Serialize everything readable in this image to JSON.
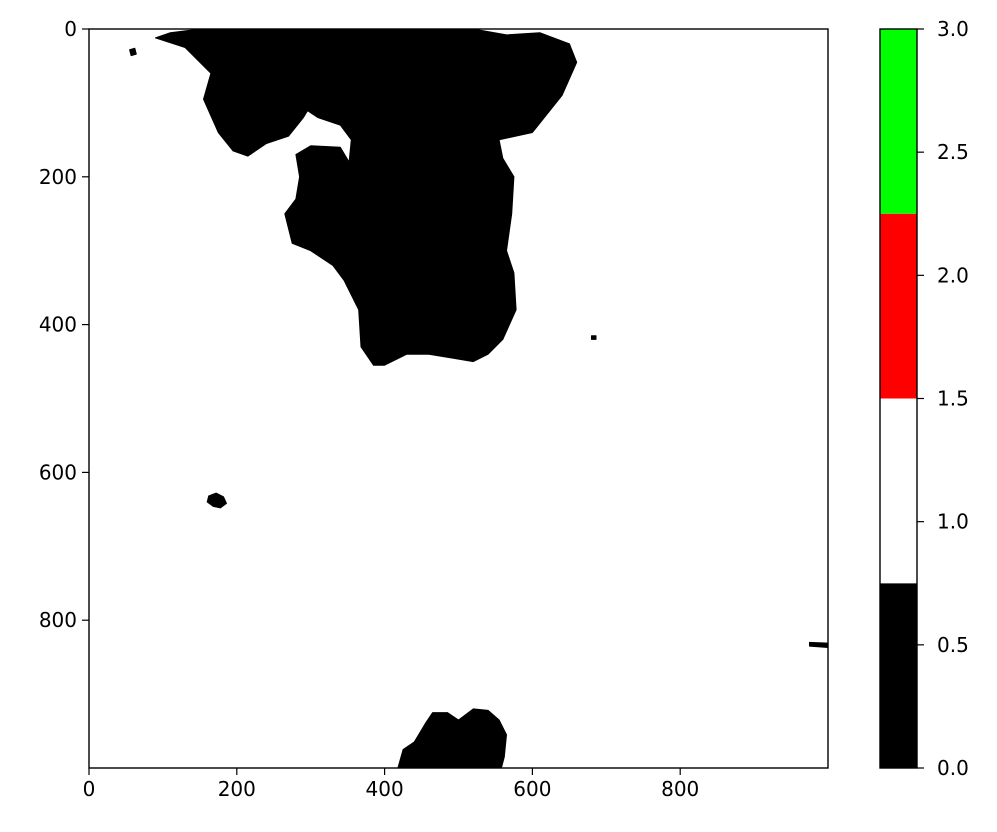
{
  "chart_data": {
    "type": "heatmap",
    "title": "",
    "xlabel": "",
    "ylabel": "",
    "x_range": [
      0,
      1000
    ],
    "y_range": [
      0,
      1000
    ],
    "y_inverted": true,
    "x_ticks": [
      "0",
      "200",
      "400",
      "600",
      "800"
    ],
    "x_tick_values": [
      0,
      200,
      400,
      600,
      800
    ],
    "y_ticks": [
      "0",
      "200",
      "400",
      "600",
      "800"
    ],
    "y_tick_values": [
      0,
      200,
      400,
      600,
      800
    ],
    "background_value": 1.0,
    "regions": [
      {
        "label": "large-connected-region",
        "value": 0,
        "color": "#000000",
        "outline": [
          [
            90,
            12
          ],
          [
            110,
            5
          ],
          [
            150,
            0
          ],
          [
            300,
            0
          ],
          [
            350,
            0
          ],
          [
            520,
            0
          ],
          [
            565,
            8
          ],
          [
            610,
            5
          ],
          [
            650,
            20
          ],
          [
            660,
            45
          ],
          [
            640,
            90
          ],
          [
            600,
            140
          ],
          [
            555,
            150
          ],
          [
            560,
            175
          ],
          [
            575,
            200
          ],
          [
            572,
            250
          ],
          [
            565,
            300
          ],
          [
            575,
            330
          ],
          [
            578,
            380
          ],
          [
            560,
            420
          ],
          [
            540,
            440
          ],
          [
            520,
            450
          ],
          [
            490,
            445
          ],
          [
            460,
            440
          ],
          [
            430,
            440
          ],
          [
            400,
            455
          ],
          [
            385,
            455
          ],
          [
            368,
            430
          ],
          [
            365,
            380
          ],
          [
            345,
            340
          ],
          [
            330,
            320
          ],
          [
            300,
            300
          ],
          [
            275,
            290
          ],
          [
            265,
            250
          ],
          [
            280,
            230
          ],
          [
            285,
            200
          ],
          [
            280,
            170
          ],
          [
            300,
            158
          ],
          [
            340,
            160
          ],
          [
            352,
            180
          ],
          [
            355,
            150
          ],
          [
            340,
            130
          ],
          [
            310,
            120
          ],
          [
            295,
            110
          ],
          [
            270,
            100
          ],
          [
            268,
            80
          ],
          [
            280,
            70
          ],
          [
            300,
            80
          ],
          [
            305,
            95
          ],
          [
            290,
            120
          ],
          [
            270,
            145
          ],
          [
            240,
            155
          ],
          [
            215,
            172
          ],
          [
            195,
            165
          ],
          [
            175,
            140
          ],
          [
            155,
            95
          ],
          [
            165,
            60
          ],
          [
            140,
            35
          ],
          [
            130,
            25
          ]
        ]
      },
      {
        "label": "small-patch-left",
        "value": 0,
        "color": "#000000",
        "outline": [
          [
            162,
            632
          ],
          [
            172,
            628
          ],
          [
            182,
            633
          ],
          [
            186,
            642
          ],
          [
            178,
            648
          ],
          [
            168,
            646
          ],
          [
            160,
            640
          ]
        ]
      },
      {
        "label": "bottom-island",
        "value": 0,
        "color": "#000000",
        "outline": [
          [
            418,
            1000
          ],
          [
            425,
            975
          ],
          [
            440,
            965
          ],
          [
            455,
            940
          ],
          [
            465,
            925
          ],
          [
            485,
            925
          ],
          [
            500,
            935
          ],
          [
            520,
            920
          ],
          [
            540,
            922
          ],
          [
            555,
            935
          ],
          [
            565,
            955
          ],
          [
            562,
            985
          ],
          [
            558,
            1000
          ]
        ]
      },
      {
        "label": "right-edge-speck",
        "value": 0,
        "color": "#000000",
        "outline": [
          [
            975,
            830
          ],
          [
            1000,
            831
          ],
          [
            1000,
            837
          ],
          [
            975,
            835
          ]
        ]
      },
      {
        "label": "top-left-speck",
        "value": 0,
        "color": "#000000",
        "outline": [
          [
            55,
            28
          ],
          [
            62,
            26
          ],
          [
            64,
            34
          ],
          [
            57,
            36
          ]
        ]
      },
      {
        "label": "edge-speck-1",
        "value": 0,
        "color": "#000000",
        "outline": [
          [
            680,
            415
          ],
          [
            686,
            415
          ],
          [
            686,
            420
          ],
          [
            680,
            420
          ]
        ]
      }
    ],
    "colorbar": {
      "ticks": [
        "0.0",
        "0.5",
        "1.0",
        "1.5",
        "2.0",
        "2.5",
        "3.0"
      ],
      "tick_values": [
        0.0,
        0.5,
        1.0,
        1.5,
        2.0,
        2.5,
        3.0
      ],
      "range": [
        0,
        3
      ],
      "segments": [
        {
          "from": 0.0,
          "to": 0.75,
          "color": "#000000"
        },
        {
          "from": 0.75,
          "to": 1.5,
          "color": "#ffffff"
        },
        {
          "from": 1.5,
          "to": 2.25,
          "color": "#ff0000"
        },
        {
          "from": 2.25,
          "to": 3.0,
          "color": "#00ff00"
        }
      ]
    },
    "grid": false,
    "legend": "none"
  }
}
